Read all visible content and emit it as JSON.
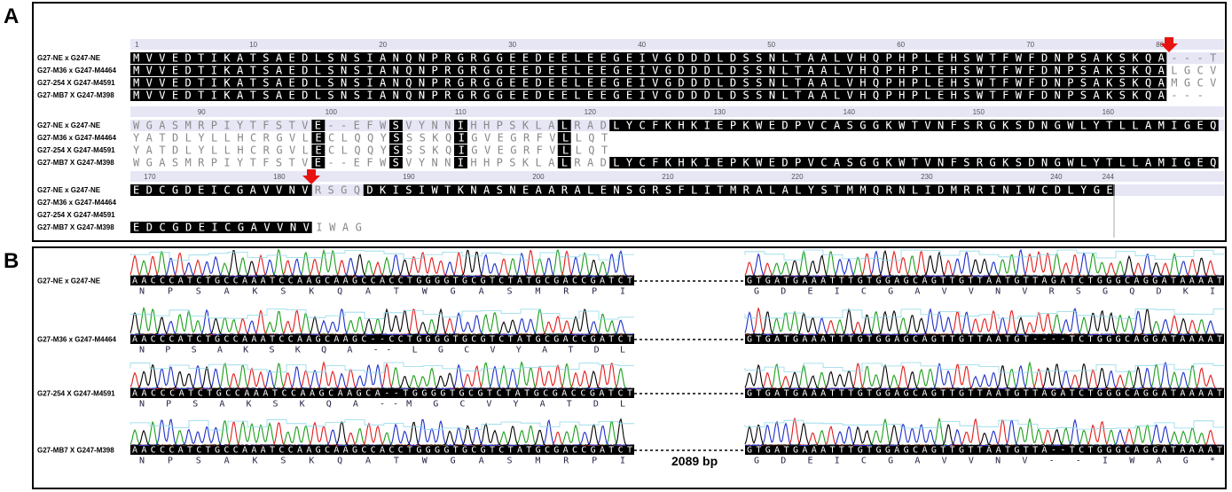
{
  "panel_a": {
    "label": "A",
    "blocks": [
      {
        "ruler": [
          1,
          10,
          20,
          30,
          40,
          50,
          60,
          70,
          80
        ],
        "rows": [
          {
            "name": "G27-NE x G247-NE",
            "seq": "MVVEDTIKATSAEDLSNSIANQNPRGRGGEEDEELEEGEIVGDDDLDSSNLTAALVHQPHPLEHSWTFWFDNPSAKSKQA---T"
          },
          {
            "name": "G27-M36 x G247-M4464",
            "seq": "MVVEDTIKATSAEDLSNSIANQNPRGRGGEEDEELEEGEIVGDDDLDSSNLTAALVHQPHPLEHSWTFWFDNPSAKSKQALGCV"
          },
          {
            "name": "G27-254 X G247-M4591",
            "seq": "MVVEDTIKATSAEDLSNSIANQNPRGRGGEEDEELEEGEIVGDDDLDSSNLTAALVHQPHPLEHSWTFWFDNPSAKSKQAMGCV"
          },
          {
            "name": "G27-MB7 X G247-M398",
            "seq": "MVVEDTIKATSAEDLSNSIANQNPRGRGGEEDEELEEGEIVGDDDLDSSNLTAALVHQPHPLEHSWTFWFDNPSAKSKQA---"
          }
        ]
      },
      {
        "ruler": [
          90,
          100,
          110,
          120,
          130,
          140,
          150,
          160
        ],
        "rows": [
          {
            "name": "G27-NE x G247-NE",
            "seq": "WGASMRPIYTFSTVE--EFWSVYNNIHHPSKLALRADLYCFKHKIEPKWEDPVCASGGKWTVNFSRGKSDNGWLYTLLAMIGEQ"
          },
          {
            "name": "G27-M36 x G247-M4464",
            "seq": "YATDLYLLHCRGVLECLQQYSSSKQIGVEGRFVLLQT"
          },
          {
            "name": "G27-254 X G247-M4591",
            "seq": "YATDLYLLHCRGVLECLQQYSSSKQIGVEGRFVLLQT"
          },
          {
            "name": "G27-MB7 X G247-M398",
            "seq": "WGASMRPIYTFSTVE--EFWSVYNNIHHPSKLALRADLYCFKHKIEPKWEDPVCASGGKWTVNFSRGKSDNGWLYTLLAMIGEQ"
          }
        ]
      },
      {
        "ruler": [
          170,
          180,
          190,
          200,
          210,
          220,
          230,
          240,
          244
        ],
        "rows": [
          {
            "name": "G27-NE x G247-NE",
            "seq": "EDCGDEICGAVVNVRSGQDKISIWTKNASNEAARALENSGRSFLITMRALALYSTMMQRNLIDMRRINIWCDLYGE"
          },
          {
            "name": "G27-M36 x G247-M4464"
          },
          {
            "name": "G27-254 X G247-M4591"
          },
          {
            "name": "G27-MB7 X G247-M398",
            "seq": "EDCGDEICGAVVNVIWAG"
          }
        ]
      }
    ]
  },
  "panel_b": {
    "label": "B",
    "gap_label": "2089 bp",
    "rows": [
      {
        "name": "G27-NE x G247-NE",
        "left_dna": "AACCCATCTGCCAAATCCAAGCAAGCCACCTGGGGTGCGTCTATGCGACCGATCT",
        "left_aa": "N P S A K S K Q A T W G A S M R P I",
        "right_dna": "GTGATGAAATTTGTGGAGCAGTTGTTAATGTTAGATCTGGGCAGGATAAAAT",
        "right_aa": "G D E I C G A V V N V R S G Q D K I"
      },
      {
        "name": "G27-M36 x G247-M4464",
        "left_dna": "AACCCATCTGCCAAATCCAAGCAAGC--CCTGGGGTGCGTCTATGCGACCGATCT",
        "left_aa": "N P S A K S K Q A -- L G C V Y A T D L",
        "right_dna": "GTGATGAAATTTGTGGAGCAGTTGTTAATGT----TCTGGGCAGGATAAAAT"
      },
      {
        "name": "G27-254 X G247-M4591",
        "left_dna": "AACCCATCTGCCAAATCCAAGCAAGCA--TGGGGTGCGTCTATGCGACCGATCT",
        "left_aa": "N P S A K S K Q A --M G C V Y A T D L",
        "right_dna": "GTGATGAAATTTGTGGAGCAGTTGTTAATGTTAGATCTGGGCAGGATAAAAT"
      },
      {
        "name": "G27-MB7 X G247-M398",
        "left_dna": "AACCCATCTGCCAAATCCAAGCAAGCCACCTGGGGTGCGTCTATGCGACCGATCT",
        "left_aa": "N P S A K S K Q A T W G A S M R P I",
        "right_dna": "GTGATGAAATTTGTGGAGCAGTTGTTAATGTTA--TCTGGGCAGGATAAAAT",
        "right_aa": "G D E I C G A V V N V - - I W A G *"
      }
    ]
  }
}
